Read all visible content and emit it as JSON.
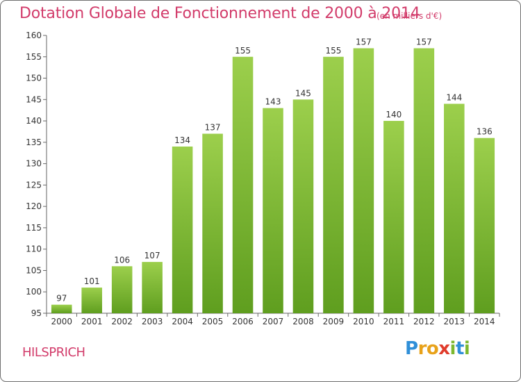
{
  "chart_data": {
    "type": "bar",
    "title": "Dotation Globale de Fonctionnement de 2000 à 2014",
    "subtitle": "(en milliers d'€)",
    "categories": [
      "2000",
      "2001",
      "2002",
      "2003",
      "2004",
      "2005",
      "2006",
      "2007",
      "2008",
      "2009",
      "2010",
      "2011",
      "2012",
      "2013",
      "2014"
    ],
    "values": [
      97,
      101,
      106,
      107,
      134,
      137,
      155,
      143,
      145,
      155,
      157,
      140,
      157,
      144,
      136
    ],
    "ylim": [
      95,
      160
    ],
    "yticks": [
      95,
      100,
      105,
      110,
      115,
      120,
      125,
      130,
      135,
      140,
      145,
      150,
      155,
      160
    ],
    "grid": false,
    "xlabel": "",
    "ylabel": "",
    "colors": {
      "bar_top": "#9ccf4c",
      "bar_bottom": "#5f9e1f",
      "accent": "#d23b6a",
      "axis": "#666666"
    }
  },
  "commune": "HILSPRICH",
  "logo": {
    "letters": [
      {
        "ch": "P",
        "color": "#2f8fd8"
      },
      {
        "ch": "r",
        "color": "#e8a21a"
      },
      {
        "ch": "o",
        "color": "#e8a21a"
      },
      {
        "ch": "x",
        "color": "#e03c2c"
      },
      {
        "ch": "i",
        "color": "#7cb82f"
      },
      {
        "ch": "t",
        "color": "#2f8fd8"
      },
      {
        "ch": "i",
        "color": "#7cb82f"
      }
    ]
  }
}
